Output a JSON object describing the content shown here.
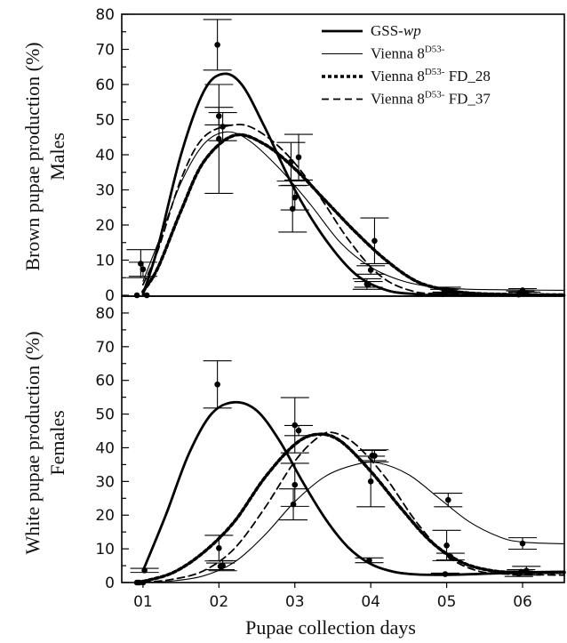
{
  "chart_data": {
    "type": "line",
    "xlabel": "Pupae collection days",
    "x_ticks": [
      "01",
      "02",
      "03",
      "04",
      "05",
      "06"
    ],
    "x": [
      1,
      2,
      3,
      4,
      5,
      6
    ],
    "xlim": [
      0.72,
      6.55
    ],
    "legend": {
      "placement": "top-right",
      "entries": [
        {
          "base": "GSS-",
          "italic": "wp",
          "sup": "",
          "tail": "",
          "style": "thick-solid"
        },
        {
          "base": "Vienna 8",
          "italic": "",
          "sup": "D53-",
          "tail": "",
          "style": "thin-solid"
        },
        {
          "base": "Vienna 8",
          "italic": "",
          "sup": "D53-",
          "tail": " FD_28",
          "style": "thick-dotted"
        },
        {
          "base": "Vienna 8",
          "italic": "",
          "sup": "D53-",
          "tail": " FD_37",
          "style": "dashed"
        }
      ]
    },
    "panels": [
      {
        "ylabel_main": "Brown pupae production (%)",
        "ylabel_sub": "Males",
        "ylim": [
          0,
          80
        ],
        "y_ticks": [
          0,
          10,
          20,
          30,
          40,
          50,
          60,
          70,
          80
        ],
        "series": [
          {
            "style": "thick-solid",
            "curve": [
              [
                1.0,
                0.3
              ],
              [
                1.2,
                14
              ],
              [
                1.5,
                40
              ],
              [
                1.8,
                58
              ],
              [
                2.05,
                63
              ],
              [
                2.3,
                60
              ],
              [
                2.6,
                48
              ],
              [
                3.0,
                30
              ],
              [
                3.4,
                16
              ],
              [
                3.8,
                6
              ],
              [
                4.2,
                1.5
              ],
              [
                4.6,
                0.3
              ],
              [
                5.0,
                0
              ],
              [
                6.55,
                0
              ]
            ],
            "points": [
              {
                "x": 0.97,
                "y": 9,
                "err": 4
              },
              {
                "x": 1.98,
                "y": 71.3,
                "err": 7.2
              },
              {
                "x": 2.97,
                "y": 24.6,
                "err": 6.6
              },
              {
                "x": 3.97,
                "y": 3.1,
                "err": 0.8
              },
              {
                "x": 4.97,
                "y": 1.1,
                "err": 0.6
              },
              {
                "x": 5.97,
                "y": 0.7,
                "err": 0.5
              }
            ]
          },
          {
            "style": "thin-solid",
            "curve": [
              [
                1.0,
                4
              ],
              [
                1.2,
                15
              ],
              [
                1.5,
                32
              ],
              [
                1.8,
                43
              ],
              [
                2.1,
                46.5
              ],
              [
                2.4,
                44
              ],
              [
                2.8,
                36
              ],
              [
                3.2,
                26
              ],
              [
                3.6,
                15
              ],
              [
                4.0,
                8
              ],
              [
                4.4,
                4.2
              ],
              [
                4.8,
                2.4
              ],
              [
                5.2,
                1.8
              ],
              [
                5.6,
                1.6
              ],
              [
                6.0,
                1.5
              ],
              [
                6.55,
                1.4
              ]
            ],
            "points": [
              {
                "x": 1.0,
                "y": 7.4,
                "err": 2
              },
              {
                "x": 2.0,
                "y": 51,
                "err": 2.5
              },
              {
                "x": 3.0,
                "y": 27.8,
                "err": 3.5
              },
              {
                "x": 4.0,
                "y": 7.2,
                "err": 1.2
              },
              {
                "x": 5.0,
                "y": 1.6,
                "err": 0.7
              },
              {
                "x": 6.0,
                "y": 1.4,
                "err": 0.5
              }
            ]
          },
          {
            "style": "thick-dotted",
            "curve": [
              [
                1.0,
                1
              ],
              [
                1.2,
                8
              ],
              [
                1.5,
                24
              ],
              [
                1.8,
                38
              ],
              [
                2.2,
                45.5
              ],
              [
                2.6,
                43
              ],
              [
                3.0,
                36
              ],
              [
                3.4,
                27
              ],
              [
                3.8,
                18
              ],
              [
                4.2,
                10
              ],
              [
                4.6,
                4
              ],
              [
                5.0,
                1.5
              ],
              [
                5.4,
                0.5
              ],
              [
                6.0,
                0.2
              ],
              [
                6.55,
                0.1
              ]
            ],
            "points": [
              {
                "x": 1.05,
                "y": 0,
                "err": 0
              },
              {
                "x": 2.05,
                "y": 48,
                "err": 4
              },
              {
                "x": 3.05,
                "y": 39.3,
                "err": 6.5
              },
              {
                "x": 4.05,
                "y": 15.5,
                "err": 6.5
              },
              {
                "x": 5.05,
                "y": 1.2,
                "err": 0.6
              },
              {
                "x": 6.05,
                "y": 0.5,
                "err": 0.4
              }
            ]
          },
          {
            "style": "dashed",
            "curve": [
              [
                1.0,
                3
              ],
              [
                1.2,
                13
              ],
              [
                1.5,
                33
              ],
              [
                1.8,
                45
              ],
              [
                2.2,
                48.5
              ],
              [
                2.5,
                47
              ],
              [
                2.9,
                40
              ],
              [
                3.3,
                29
              ],
              [
                3.7,
                16
              ],
              [
                4.1,
                6
              ],
              [
                4.5,
                1.5
              ],
              [
                5.0,
                0.3
              ],
              [
                6.55,
                0
              ]
            ],
            "points": [
              {
                "x": 0.92,
                "y": 0,
                "err": 0
              },
              {
                "x": 2.0,
                "y": 44.5,
                "err": 15.5
              },
              {
                "x": 2.95,
                "y": 38,
                "err": 5.5
              },
              {
                "x": 3.95,
                "y": 3.2,
                "err": 1.5
              },
              {
                "x": 4.95,
                "y": 0.3,
                "err": 0.3
              },
              {
                "x": 5.95,
                "y": 0.2,
                "err": 0.2
              }
            ]
          }
        ]
      },
      {
        "ylabel_main": "White pupae production (%)",
        "ylabel_sub": "Females",
        "ylim": [
          0,
          85
        ],
        "y_ticks": [
          0,
          10,
          20,
          30,
          40,
          50,
          60,
          70,
          80
        ],
        "series": [
          {
            "style": "thick-solid",
            "curve": [
              [
                1.0,
                3.5
              ],
              [
                1.3,
                20
              ],
              [
                1.6,
                38
              ],
              [
                1.9,
                50
              ],
              [
                2.2,
                53.5
              ],
              [
                2.5,
                51
              ],
              [
                2.8,
                42
              ],
              [
                3.1,
                30
              ],
              [
                3.4,
                19
              ],
              [
                3.7,
                10.5
              ],
              [
                4.0,
                5.5
              ],
              [
                4.3,
                3.2
              ],
              [
                4.6,
                2.4
              ],
              [
                5.0,
                2.3
              ],
              [
                5.5,
                2.6
              ],
              [
                6.0,
                3.0
              ],
              [
                6.55,
                3.2
              ]
            ],
            "points": [
              {
                "x": 1.02,
                "y": 3.6,
                "err": 0.6
              },
              {
                "x": 1.98,
                "y": 58.8,
                "err": 7
              },
              {
                "x": 2.98,
                "y": 23.2,
                "err": 4.6
              },
              {
                "x": 3.98,
                "y": 6.6,
                "err": 0.7
              },
              {
                "x": 4.98,
                "y": 2.5,
                "err": 0.3
              },
              {
                "x": 5.98,
                "y": 3.2,
                "err": 0.6
              }
            ]
          },
          {
            "style": "thin-solid",
            "curve": [
              [
                1.0,
                0
              ],
              [
                1.4,
                0.5
              ],
              [
                1.8,
                2
              ],
              [
                2.2,
                6
              ],
              [
                2.6,
                14
              ],
              [
                3.0,
                24
              ],
              [
                3.4,
                31.5
              ],
              [
                3.8,
                35
              ],
              [
                4.1,
                35.5
              ],
              [
                4.5,
                32
              ],
              [
                4.9,
                25
              ],
              [
                5.3,
                18
              ],
              [
                5.7,
                13.5
              ],
              [
                6.0,
                12
              ],
              [
                6.55,
                11.5
              ]
            ],
            "points": [
              {
                "x": 1.0,
                "y": 0,
                "err": 0
              },
              {
                "x": 2.02,
                "y": 4.8,
                "err": 1
              },
              {
                "x": 3.0,
                "y": 29,
                "err": 6.4
              },
              {
                "x": 4.02,
                "y": 37.7,
                "err": 1.5
              },
              {
                "x": 5.02,
                "y": 24.5,
                "err": 2
              },
              {
                "x": 6.0,
                "y": 11.6,
                "err": 1.7
              }
            ]
          },
          {
            "style": "thick-dotted",
            "curve": [
              [
                1.0,
                0.3
              ],
              [
                1.4,
                3
              ],
              [
                1.8,
                9
              ],
              [
                2.2,
                18
              ],
              [
                2.6,
                31
              ],
              [
                3.0,
                41
              ],
              [
                3.3,
                44
              ],
              [
                3.6,
                42
              ],
              [
                4.0,
                33
              ],
              [
                4.4,
                22
              ],
              [
                4.8,
                12
              ],
              [
                5.2,
                6
              ],
              [
                5.6,
                3.5
              ],
              [
                6.0,
                3
              ],
              [
                6.55,
                3
              ]
            ],
            "points": [
              {
                "x": 0.95,
                "y": 0,
                "err": 0
              },
              {
                "x": 2.0,
                "y": 10.2,
                "err": 3.8
              },
              {
                "x": 3.05,
                "y": 45.1,
                "err": 1.5
              },
              {
                "x": 4.05,
                "y": 37.6,
                "err": 1.8
              },
              {
                "x": 5.05,
                "y": 7.7,
                "err": 1
              },
              {
                "x": 6.05,
                "y": 3.5,
                "err": 1.3
              }
            ]
          },
          {
            "style": "dashed",
            "curve": [
              [
                1.0,
                0
              ],
              [
                1.4,
                1
              ],
              [
                1.8,
                3.5
              ],
              [
                2.2,
                10
              ],
              [
                2.6,
                22
              ],
              [
                3.0,
                36
              ],
              [
                3.3,
                43
              ],
              [
                3.5,
                44.5
              ],
              [
                3.8,
                41
              ],
              [
                4.2,
                31
              ],
              [
                4.6,
                18
              ],
              [
                5.0,
                8
              ],
              [
                5.4,
                3.5
              ],
              [
                5.8,
                2.5
              ],
              [
                6.2,
                2.3
              ],
              [
                6.55,
                2.2
              ]
            ],
            "points": [
              {
                "x": 0.92,
                "y": 0,
                "err": 0
              },
              {
                "x": 2.05,
                "y": 5,
                "err": 1.5
              },
              {
                "x": 3.0,
                "y": 46.7,
                "err": 8.2
              },
              {
                "x": 4.0,
                "y": 30,
                "err": 7.5
              },
              {
                "x": 5.0,
                "y": 11,
                "err": 4.5
              },
              {
                "x": 5.95,
                "y": 2.6,
                "err": 0.8
              }
            ]
          }
        ]
      }
    ]
  }
}
